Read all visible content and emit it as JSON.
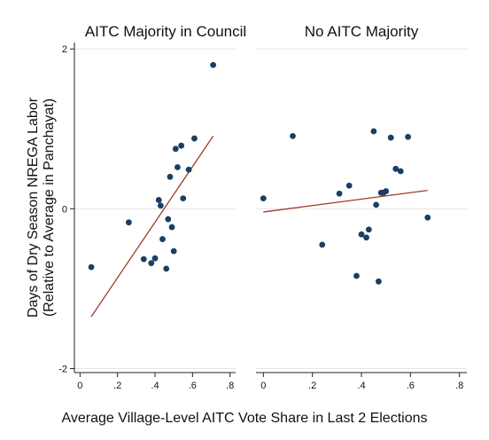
{
  "chart_data": {
    "type": "scatter",
    "xlabel": "Average Village-Level AITC Vote Share in Last 2 Elections",
    "ylabel": [
      "Days of Dry Season NREGA Labor",
      "(Relative to Average in Panchayat)"
    ],
    "y_ticks": [
      {
        "value": 2,
        "label": "2"
      },
      {
        "value": 0,
        "label": "0"
      },
      {
        "value": -2,
        "label": "-2"
      }
    ],
    "x_ticks": [
      {
        "value": 0,
        "label": "0"
      },
      {
        "value": 0.2,
        "label": ".2"
      },
      {
        "value": 0.4,
        "label": ".4"
      },
      {
        "value": 0.6,
        "label": ".6"
      },
      {
        "value": 0.8,
        "label": ".8"
      }
    ],
    "xlim": [
      -0.03,
      0.83
    ],
    "ylim": [
      -2.05,
      2.08
    ],
    "grid": true,
    "colors": {
      "points": "#1a3f66",
      "fit_line": "#a0392c"
    },
    "panels": [
      {
        "title": "AITC Majority in Council",
        "points": [
          {
            "x": 0.06,
            "y": -0.73
          },
          {
            "x": 0.26,
            "y": -0.17
          },
          {
            "x": 0.34,
            "y": -0.63
          },
          {
            "x": 0.38,
            "y": -0.68
          },
          {
            "x": 0.4,
            "y": -0.62
          },
          {
            "x": 0.42,
            "y": 0.11
          },
          {
            "x": 0.43,
            "y": 0.04
          },
          {
            "x": 0.44,
            "y": -0.38
          },
          {
            "x": 0.46,
            "y": -0.75
          },
          {
            "x": 0.47,
            "y": -0.13
          },
          {
            "x": 0.48,
            "y": 0.4
          },
          {
            "x": 0.49,
            "y": -0.23
          },
          {
            "x": 0.5,
            "y": -0.53
          },
          {
            "x": 0.51,
            "y": 0.75
          },
          {
            "x": 0.52,
            "y": 0.52
          },
          {
            "x": 0.54,
            "y": 0.79
          },
          {
            "x": 0.55,
            "y": 0.13
          },
          {
            "x": 0.58,
            "y": 0.49
          },
          {
            "x": 0.61,
            "y": 0.88
          },
          {
            "x": 0.71,
            "y": 1.8
          }
        ],
        "fit": {
          "x1": 0.06,
          "y1": -1.35,
          "x2": 0.71,
          "y2": 0.91
        }
      },
      {
        "title": "No AITC Majority",
        "points": [
          {
            "x": 0.0,
            "y": 0.13
          },
          {
            "x": 0.12,
            "y": 0.91
          },
          {
            "x": 0.24,
            "y": -0.45
          },
          {
            "x": 0.31,
            "y": 0.19
          },
          {
            "x": 0.35,
            "y": 0.29
          },
          {
            "x": 0.38,
            "y": -0.84
          },
          {
            "x": 0.4,
            "y": -0.32
          },
          {
            "x": 0.42,
            "y": -0.36
          },
          {
            "x": 0.43,
            "y": -0.26
          },
          {
            "x": 0.45,
            "y": 0.97
          },
          {
            "x": 0.46,
            "y": 0.05
          },
          {
            "x": 0.47,
            "y": -0.91
          },
          {
            "x": 0.48,
            "y": 0.2
          },
          {
            "x": 0.49,
            "y": 0.2
          },
          {
            "x": 0.5,
            "y": 0.22
          },
          {
            "x": 0.52,
            "y": 0.89
          },
          {
            "x": 0.54,
            "y": 0.5
          },
          {
            "x": 0.56,
            "y": 0.47
          },
          {
            "x": 0.59,
            "y": 0.9
          },
          {
            "x": 0.67,
            "y": -0.11
          }
        ],
        "fit": {
          "x1": 0.0,
          "y1": -0.04,
          "x2": 0.67,
          "y2": 0.23
        }
      }
    ]
  }
}
